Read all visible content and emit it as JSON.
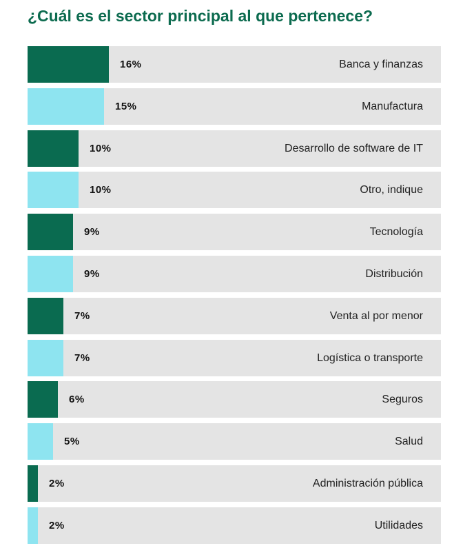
{
  "chart_data": {
    "type": "bar",
    "orientation": "horizontal",
    "title": "¿Cuál es el sector principal al que pertenece?",
    "value_suffix": "%",
    "xlim": [
      0,
      100
    ],
    "colors": {
      "dark": "#0a6b50",
      "light": "#8ee4f0",
      "track": "#e4e4e4"
    },
    "categories": [
      "Banca y finanzas",
      "Manufactura",
      "Desarrollo de software de IT",
      "Otro, indique",
      "Tecnología",
      "Distribución",
      "Venta al por menor",
      "Logística o transporte",
      "Seguros",
      "Salud",
      "Administración pública",
      "Utilidades"
    ],
    "values": [
      16,
      15,
      10,
      10,
      9,
      9,
      7,
      7,
      6,
      5,
      2,
      2
    ],
    "labels": [
      "16%",
      "15%",
      "10%",
      "10%",
      "9%",
      "9%",
      "7%",
      "7%",
      "6%",
      "5%",
      "2%",
      "2%"
    ]
  }
}
